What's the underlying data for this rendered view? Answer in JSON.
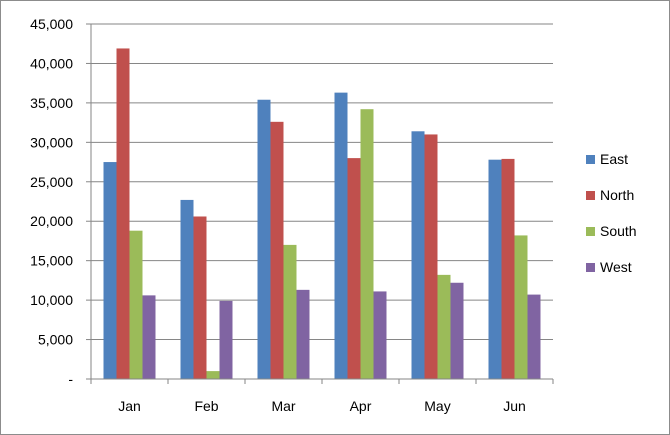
{
  "chart_data": {
    "type": "bar",
    "categories": [
      "Jan",
      "Feb",
      "Mar",
      "Apr",
      "May",
      "Jun"
    ],
    "series": [
      {
        "name": "East",
        "color": "#4F81BD",
        "values": [
          27500,
          22700,
          35400,
          36300,
          31400,
          27800
        ]
      },
      {
        "name": "North",
        "color": "#C0504D",
        "values": [
          41900,
          20600,
          32600,
          28000,
          31000,
          27900
        ]
      },
      {
        "name": "South",
        "color": "#9BBB59",
        "values": [
          18800,
          1000,
          17000,
          34200,
          13200,
          18200
        ]
      },
      {
        "name": "West",
        "color": "#8064A2",
        "values": [
          10600,
          9900,
          11300,
          11100,
          12200,
          10700
        ]
      }
    ],
    "ylim": [
      0,
      45000
    ],
    "y_ticks": [
      0,
      5000,
      10000,
      15000,
      20000,
      25000,
      30000,
      35000,
      40000,
      45000
    ],
    "y_tick_labels": [
      "-",
      "5,000",
      "10,000",
      "15,000",
      "20,000",
      "25,000",
      "30,000",
      "35,000",
      "40,000",
      "45,000"
    ],
    "grid": true,
    "legend_position": "right",
    "title": "",
    "xlabel": "",
    "ylabel": ""
  }
}
